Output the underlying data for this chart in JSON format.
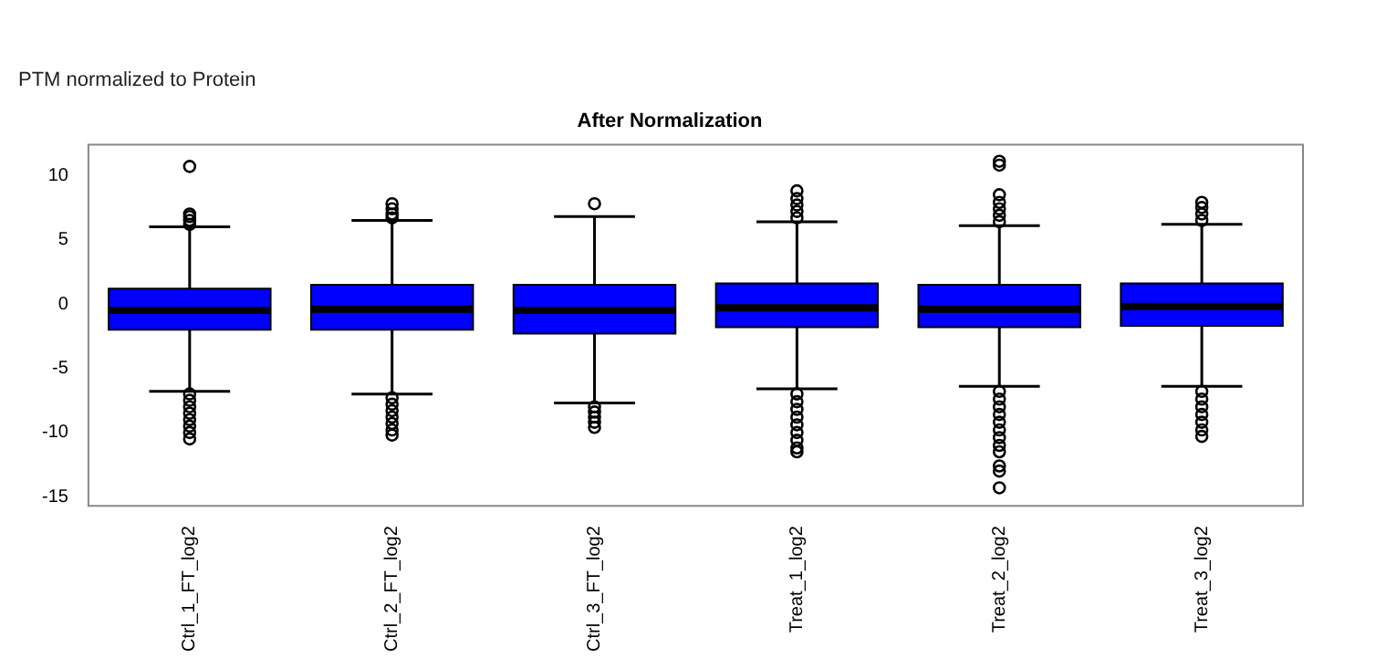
{
  "chart_data": {
    "type": "box",
    "title": "After Normalization",
    "subtitle": "PTM normalized to Protein",
    "categories": [
      "Ctrl_1_FT_log2",
      "Ctrl_2_FT_log2",
      "Ctrl_3_FT_log2",
      "Treat_1_log2",
      "Treat_2_log2",
      "Treat_3_log2"
    ],
    "color": "#0000ff",
    "boxes": [
      {
        "low": -6.8,
        "q1": -2.0,
        "median": -0.5,
        "q3": 1.2,
        "high": 6.0,
        "outliers": [
          6.2,
          6.5,
          6.8,
          7.0,
          10.7,
          -7.0,
          -7.5,
          -8.0,
          -8.5,
          -9.0,
          -9.5,
          -10.0,
          -10.5
        ]
      },
      {
        "low": -7.0,
        "q1": -2.0,
        "median": -0.4,
        "q3": 1.5,
        "high": 6.5,
        "outliers": [
          6.7,
          7.0,
          7.4,
          7.8,
          -7.3,
          -7.8,
          -8.3,
          -8.8,
          -9.3,
          -9.8,
          -10.2
        ]
      },
      {
        "low": -7.7,
        "q1": -2.3,
        "median": -0.5,
        "q3": 1.5,
        "high": 6.8,
        "outliers": [
          7.8,
          -8.0,
          -8.4,
          -8.8,
          -9.2,
          -9.6
        ]
      },
      {
        "low": -6.6,
        "q1": -1.8,
        "median": -0.3,
        "q3": 1.6,
        "high": 6.4,
        "outliers": [
          6.7,
          7.2,
          7.7,
          8.2,
          8.8,
          -7.0,
          -7.6,
          -8.2,
          -8.8,
          -9.4,
          -10.0,
          -10.6,
          -11.2,
          -11.5
        ]
      },
      {
        "low": -6.4,
        "q1": -1.8,
        "median": -0.4,
        "q3": 1.5,
        "high": 6.1,
        "outliers": [
          6.4,
          6.9,
          7.4,
          7.9,
          8.5,
          10.8,
          11.1,
          -6.8,
          -7.4,
          -8.0,
          -8.6,
          -9.2,
          -9.8,
          -10.4,
          -11.0,
          -11.5,
          -12.6,
          -13.0,
          -14.3
        ]
      },
      {
        "low": -6.4,
        "q1": -1.7,
        "median": -0.2,
        "q3": 1.6,
        "high": 6.2,
        "outliers": [
          6.5,
          7.0,
          7.5,
          7.9,
          -6.8,
          -7.4,
          -8.0,
          -8.6,
          -9.2,
          -9.8,
          -10.3
        ]
      }
    ],
    "ylim": [
      -15.7,
      12.4
    ],
    "yticks": [
      -15,
      -10,
      -5,
      0,
      5,
      10
    ],
    "grid": false,
    "legend": false,
    "marker": "circle"
  }
}
